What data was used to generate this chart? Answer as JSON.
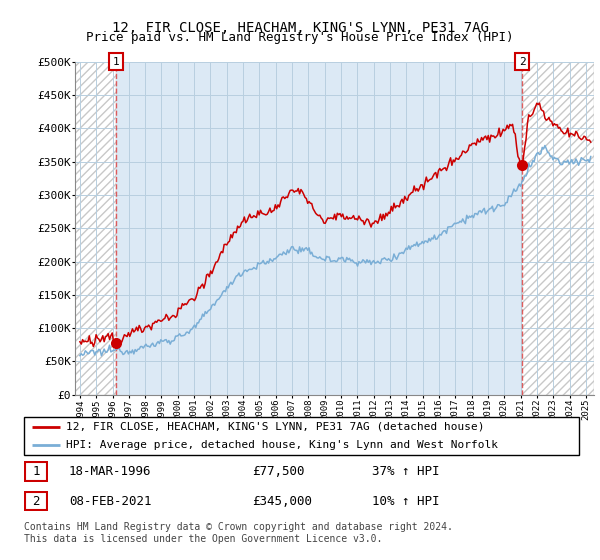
{
  "title": "12, FIR CLOSE, HEACHAM, KING'S LYNN, PE31 7AG",
  "subtitle": "Price paid vs. HM Land Registry's House Price Index (HPI)",
  "legend_line1": "12, FIR CLOSE, HEACHAM, KING'S LYNN, PE31 7AG (detached house)",
  "legend_line2": "HPI: Average price, detached house, King's Lynn and West Norfolk",
  "annotation1_label": "1",
  "annotation1_date": "18-MAR-1996",
  "annotation1_price": "£77,500",
  "annotation1_hpi": "37% ↑ HPI",
  "annotation2_label": "2",
  "annotation2_date": "08-FEB-2021",
  "annotation2_price": "£345,000",
  "annotation2_hpi": "10% ↑ HPI",
  "footer": "Contains HM Land Registry data © Crown copyright and database right 2024.\nThis data is licensed under the Open Government Licence v3.0.",
  "xmin": 1993.7,
  "xmax": 2025.5,
  "ymin": 0,
  "ymax": 500000,
  "yticks": [
    0,
    50000,
    100000,
    150000,
    200000,
    250000,
    300000,
    350000,
    400000,
    450000,
    500000
  ],
  "ytick_labels": [
    "£0",
    "£50K",
    "£100K",
    "£150K",
    "£200K",
    "£250K",
    "£300K",
    "£350K",
    "£400K",
    "£450K",
    "£500K"
  ],
  "red_line_color": "#cc0000",
  "blue_line_color": "#7aaed6",
  "marker_color": "#cc0000",
  "sale1_x": 1996.21,
  "sale1_y": 77500,
  "sale2_x": 2021.1,
  "sale2_y": 345000,
  "bg_color": "#dce9f5",
  "hatch_color": "#c8c8c8",
  "title_fontsize": 10,
  "subtitle_fontsize": 9,
  "axis_fontsize": 8,
  "legend_fontsize": 8,
  "footer_fontsize": 7
}
